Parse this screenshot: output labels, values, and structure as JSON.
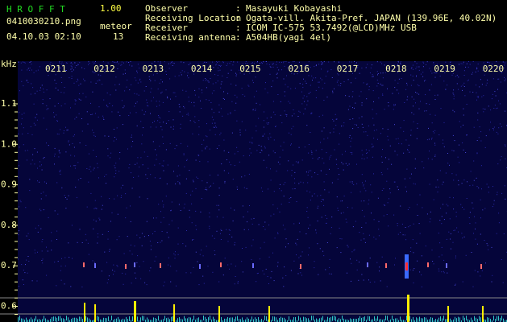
{
  "header": {
    "app_name": "H R O F F T",
    "version": "1.00",
    "file": "0410030210.png",
    "meteor_label": "meteor",
    "datetime": "04.10.03 02:10",
    "meteor_count": "13"
  },
  "info": [
    {
      "label": "Observer",
      "value": "Masayuki Kobayashi"
    },
    {
      "label": "Receiving Location",
      "value": "Ogata-vill. Akita-Pref. JAPAN (139.96E, 40.02N)"
    },
    {
      "label": "Receiver",
      "value": "ICOM IC-575 53.7492(@LCD)MHz USB"
    },
    {
      "label": "Receiving antenna",
      "value": "A504HB(yagi 4el)"
    }
  ],
  "separator": ":",
  "axis": {
    "unit": "kHz",
    "y_labels": [
      "1.1",
      "1.0",
      "0.9",
      "0.8",
      "0.7",
      "0.6"
    ],
    "time_labels": [
      "0211",
      "0212",
      "0213",
      "0214",
      "0215",
      "0216",
      "0217",
      "0218",
      "0219",
      "0220"
    ]
  }
}
